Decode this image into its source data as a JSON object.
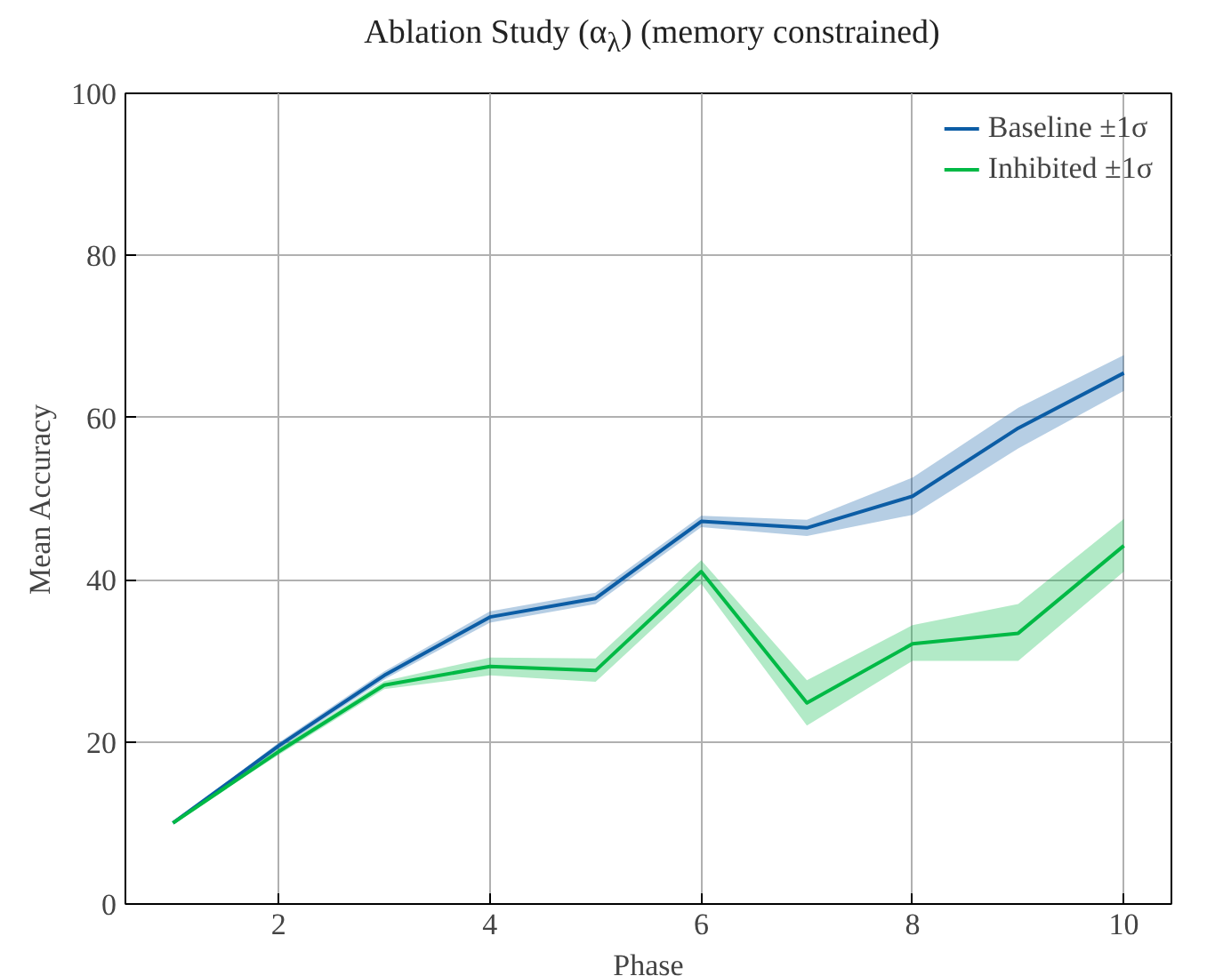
{
  "chart_data": {
    "type": "line",
    "title": "Ablation Study (α$_{λ}$) (memory constrained)",
    "xlabel": "Phase",
    "ylabel": "Mean Accuracy",
    "x": [
      1,
      2,
      3,
      4,
      5,
      6,
      7,
      8,
      9,
      10
    ],
    "series": [
      {
        "name": "Baseline ±1σ",
        "color": "#0c5da5",
        "values": [
          10,
          19.5,
          28.2,
          35.4,
          37.7,
          47.2,
          46.4,
          50.3,
          58.7,
          65.5
        ],
        "lower": [
          10,
          19.1,
          27.7,
          34.7,
          37.0,
          46.5,
          45.4,
          48.0,
          56.2,
          63.3
        ],
        "upper": [
          10,
          19.9,
          28.7,
          36.1,
          38.4,
          47.9,
          47.4,
          52.6,
          61.2,
          67.7
        ]
      },
      {
        "name": "Inhibited ±1σ",
        "color": "#00b945",
        "values": [
          10,
          18.8,
          27.0,
          29.3,
          28.8,
          41.0,
          24.8,
          32.1,
          33.4,
          44.2
        ],
        "lower": [
          10,
          18.4,
          26.5,
          28.2,
          27.4,
          39.5,
          22.0,
          30.0,
          30.0,
          41.0
        ],
        "upper": [
          10,
          19.2,
          27.5,
          30.4,
          30.3,
          42.4,
          27.6,
          34.4,
          37.0,
          47.5
        ]
      }
    ],
    "xlim": [
      0.55,
      10.45
    ],
    "ylim": [
      0,
      100
    ],
    "xticks": [
      2,
      4,
      6,
      8,
      10
    ],
    "yticks": [
      0,
      20,
      40,
      60,
      80,
      100
    ],
    "grid": true,
    "legend": "top right"
  }
}
